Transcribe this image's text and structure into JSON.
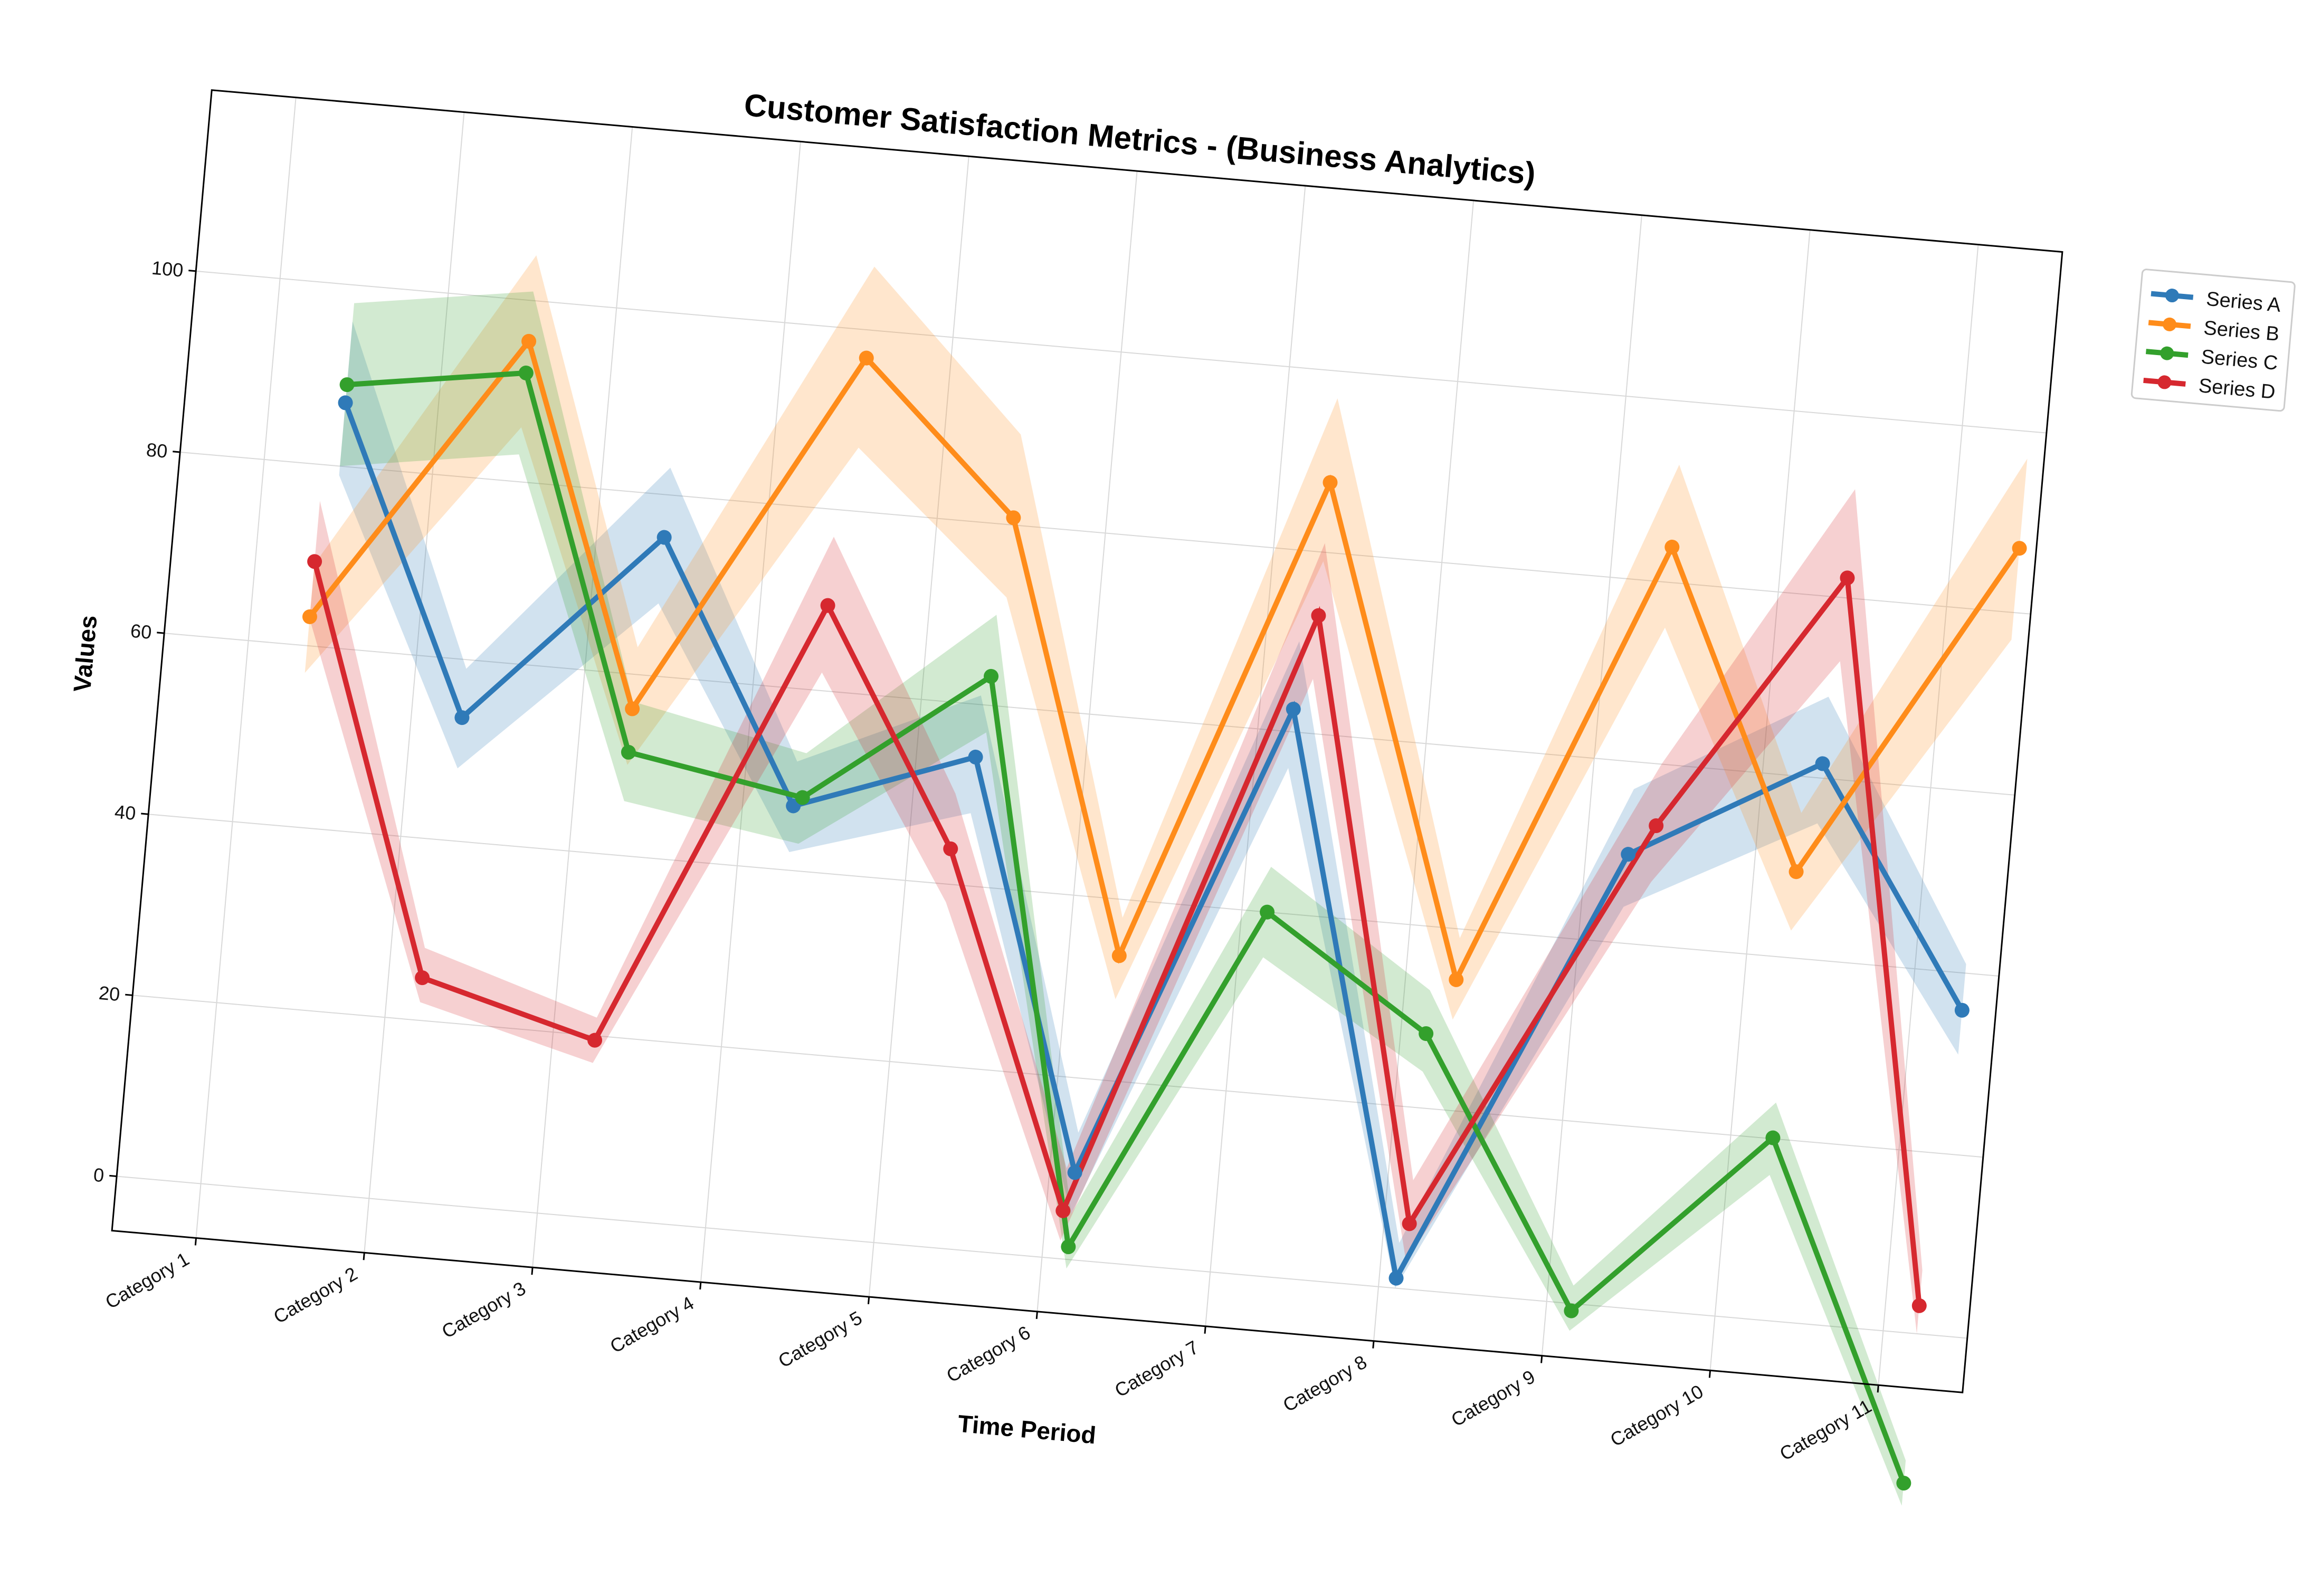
{
  "chart_data": {
    "type": "line",
    "title": "Customer Satisfaction Metrics - (Business Analytics)",
    "xlabel": "Time Period",
    "ylabel": "Values",
    "categories": [
      "Category 1",
      "Category 2",
      "Category 3",
      "Category 4",
      "Category 5",
      "Category 6",
      "Category 7",
      "Category 8",
      "Category 9",
      "Category 10",
      "Category 11"
    ],
    "ylim": [
      -6,
      120
    ],
    "yticks": [
      0,
      20,
      40,
      60,
      80,
      100
    ],
    "grid": true,
    "legend_position": "upper-right-outside",
    "rotation_degrees": 5,
    "series": [
      {
        "name": "Series A",
        "color": "#2f7ab8",
        "x": [
          0.45,
          1.3,
          2.4,
          3.3,
          4.35,
          5.15,
          6.2,
          7.1,
          8.25,
          9.35,
          10.3
        ],
        "values": [
          87,
          53.6,
          75.3,
          47.1,
          54.2,
          9.6,
          62.5,
          1.1,
          49.8,
          61.6,
          35.9
        ],
        "upper": [
          96,
          59,
          83,
          52,
          61,
          14,
          70,
          5,
          57,
          69,
          41
        ],
        "lower": [
          79,
          48,
          68,
          42,
          48,
          5,
          56,
          0,
          44,
          55,
          31
        ]
      },
      {
        "name": "Series B",
        "color": "#ff8c1a",
        "x": [
          0.35,
          1.5,
          2.3,
          3.5,
          4.45,
          5.3,
          6.3,
          7.3,
          8.35,
          9.25,
          10.4
        ],
        "values": [
          63.2,
          95.5,
          56.2,
          96.9,
          80.8,
          33.8,
          87.7,
          34.4,
          83.9,
          49.5,
          87.1
        ],
        "upper": [
          69,
          105,
          63,
          107,
          90,
          38,
          97,
          39,
          93,
          56,
          97
        ],
        "lower": [
          57,
          86,
          50,
          87,
          72,
          29,
          79,
          30,
          75,
          43,
          77
        ]
      },
      {
        "name": "Series C",
        "color": "#33a02c",
        "x": [
          0.45,
          1.5,
          2.3,
          3.35,
          4.4,
          5.15,
          6.15,
          7.15,
          8.15,
          9.25,
          10.2
        ],
        "values": [
          89,
          92,
          51.4,
          48.1,
          63.2,
          1.4,
          40,
          28.2,
          -0.8,
          20.1,
          -16.5
        ],
        "upper": [
          98,
          101,
          57,
          53,
          70,
          5,
          45,
          33,
          2,
          24,
          -14
        ],
        "lower": [
          80,
          83,
          46,
          43,
          57,
          -1,
          35,
          24,
          -3,
          16,
          -19
        ]
      },
      {
        "name": "Series D",
        "color": "#d6282f",
        "x": [
          0.35,
          1.2,
          2.25,
          3.4,
          4.25,
          5.1,
          6.3,
          7.15,
          8.4,
          9.4,
          10.2
        ],
        "values": [
          69.3,
          24.7,
          19.5,
          69.4,
          43.9,
          5.3,
          73,
          7.2,
          53.2,
          82.2,
          3.1
        ],
        "upper": [
          76,
          28,
          22,
          77,
          50,
          10,
          81,
          12,
          60,
          92,
          7
        ],
        "lower": [
          63,
          22,
          17,
          62,
          38,
          2,
          66,
          3,
          47,
          73,
          0
        ]
      }
    ]
  }
}
